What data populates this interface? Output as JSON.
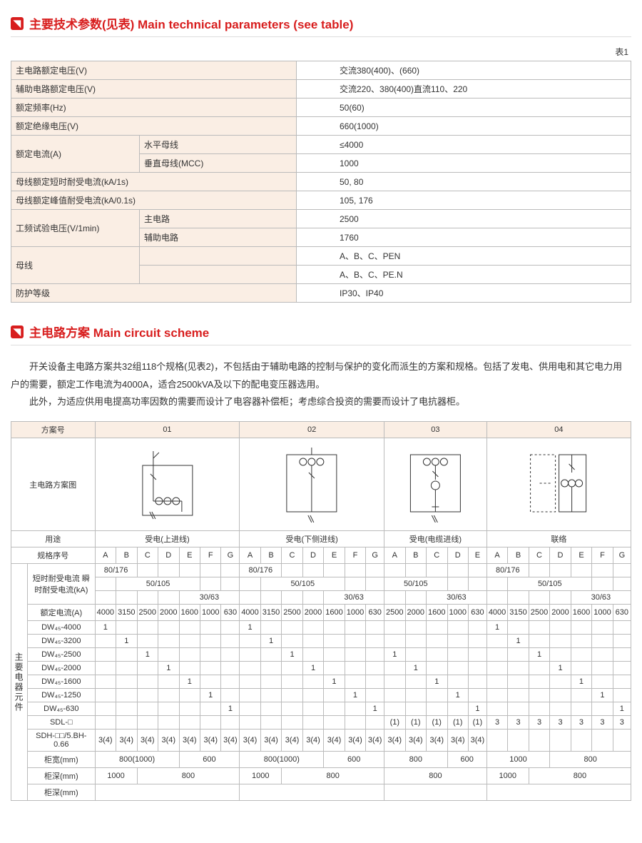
{
  "colors": {
    "accent": "#d81e1e",
    "header_bg": "#faeee4",
    "border": "#bbb",
    "text": "#333"
  },
  "section1": {
    "icon_glyph": "◥",
    "title": "主要技术参数(见表) Main technical parameters (see table)",
    "caption": "表1",
    "rows": [
      {
        "label": "主电路额定电压(V)",
        "sub": null,
        "val": "交流380(400)、(660)"
      },
      {
        "label": "辅助电路额定电压(V)",
        "sub": null,
        "val": "交流220、380(400)直流110、220"
      },
      {
        "label": "额定频率(Hz)",
        "sub": null,
        "val": "50(60)"
      },
      {
        "label": "额定绝缘电压(V)",
        "sub": null,
        "val": "660(1000)"
      },
      {
        "label": "额定电流(A)",
        "sub": "水平母线",
        "val": "≤4000"
      },
      {
        "label": null,
        "sub": "垂直母线(MCC)",
        "val": "1000"
      },
      {
        "label": "母线额定短时耐受电流(kA/1s)",
        "sub": null,
        "val": "50, 80"
      },
      {
        "label": "母线额定峰值耐受电流(kA/0.1s)",
        "sub": null,
        "val": "105, 176"
      },
      {
        "label": "工频试验电压(V/1min)",
        "sub": "主电路",
        "val": "2500"
      },
      {
        "label": null,
        "sub": "辅助电路",
        "val": "1760"
      },
      {
        "label": "母线",
        "sub": "",
        "val": "A、B、C、PEN"
      },
      {
        "label": null,
        "sub": "",
        "val": "A、B、C、PE.N"
      },
      {
        "label": "防护等级",
        "sub": null,
        "val": "IP30、IP40"
      }
    ]
  },
  "section2": {
    "icon_glyph": "◥",
    "title": "主电路方案 Main circuit scheme",
    "paragraphs": [
      "开关设备主电路方案共32组118个规格(见表2)，不包括由于辅助电路的控制与保护的变化而派生的方案和规格。包括了发电、供用电和其它电力用户的需要，额定工作电流为4000A，适合2500kVA及以下的配电变压器选用。",
      "此外，为适应供用电提高功率因数的需要而设计了电容器补偿柜；考虑综合投资的需要而设计了电抗器柜。"
    ],
    "table": {
      "scheme_label": "方案号",
      "scheme_ids": [
        "01",
        "02",
        "03",
        "04"
      ],
      "diagram_label": "主电路方案图",
      "usage_label": "用途",
      "usages": [
        "受电(上进线)",
        "受电(下侧进线)",
        "受电(电缆进线)",
        "联络"
      ],
      "spec_label": "规格序号",
      "col_counts": [
        7,
        7,
        5,
        7
      ],
      "spec_letters": {
        "0": [
          "A",
          "B",
          "C",
          "D",
          "E",
          "F",
          "G"
        ],
        "1": [
          "A",
          "B",
          "C",
          "D",
          "E",
          "F",
          "G"
        ],
        "2": [
          "A",
          "B",
          "C",
          "D",
          "E"
        ],
        "3": [
          "A",
          "B",
          "C",
          "D",
          "E",
          "F",
          "G"
        ]
      },
      "side_label": "主要电器元件",
      "short_label": "短时耐受电流\n瞬时耐受电流(kA)",
      "short_rows": {
        "r1": {
          "g0": "80/176",
          "g1": "80/176",
          "g3": "80/176",
          "span0": 2,
          "span1": 2,
          "span3": 2
        },
        "r2": {
          "g0": "50/105",
          "g1": "50/105",
          "g2": "50/105",
          "g3": "50/105"
        },
        "r3": {
          "g0": "30/63",
          "g1": "30/63",
          "g2": "30/63",
          "g3": "30/63"
        }
      },
      "rated_current_label": "额定电流(A)",
      "rated_current": {
        "g0": [
          "4000",
          "3150",
          "2500",
          "2000",
          "1600",
          "1000",
          "630"
        ],
        "g1": [
          "4000",
          "3150",
          "2500",
          "2000",
          "1600",
          "1000",
          "630"
        ],
        "g2": [
          "2500",
          "2000",
          "1600",
          "1000",
          "630"
        ],
        "g3": [
          "4000",
          "3150",
          "2500",
          "2000",
          "1600",
          "1000",
          "630"
        ]
      },
      "component_rows": [
        {
          "name": "DW₄₅-4000",
          "g0": [
            "1",
            "",
            "",
            "",
            "",
            "",
            ""
          ],
          "g1": [
            "1",
            "",
            "",
            "",
            "",
            "",
            ""
          ],
          "g2": [
            "",
            "",
            "",
            "",
            ""
          ],
          "g3": [
            "1",
            "",
            "",
            "",
            "",
            "",
            ""
          ]
        },
        {
          "name": "DW₄₅-3200",
          "g0": [
            "",
            "1",
            "",
            "",
            "",
            "",
            ""
          ],
          "g1": [
            "",
            "1",
            "",
            "",
            "",
            "",
            ""
          ],
          "g2": [
            "",
            "",
            "",
            "",
            ""
          ],
          "g3": [
            "",
            "1",
            "",
            "",
            "",
            "",
            ""
          ]
        },
        {
          "name": "DW₄₅-2500",
          "g0": [
            "",
            "",
            "1",
            "",
            "",
            "",
            ""
          ],
          "g1": [
            "",
            "",
            "1",
            "",
            "",
            "",
            ""
          ],
          "g2": [
            "1",
            "",
            "",
            "",
            ""
          ],
          "g3": [
            "",
            "",
            "1",
            "",
            "",
            "",
            ""
          ]
        },
        {
          "name": "DW₄₅-2000",
          "g0": [
            "",
            "",
            "",
            "1",
            "",
            "",
            ""
          ],
          "g1": [
            "",
            "",
            "",
            "1",
            "",
            "",
            ""
          ],
          "g2": [
            "",
            "1",
            "",
            "",
            ""
          ],
          "g3": [
            "",
            "",
            "",
            "1",
            "",
            "",
            ""
          ]
        },
        {
          "name": "DW₄₅-1600",
          "g0": [
            "",
            "",
            "",
            "",
            "1",
            "",
            ""
          ],
          "g1": [
            "",
            "",
            "",
            "",
            "1",
            "",
            ""
          ],
          "g2": [
            "",
            "",
            "1",
            "",
            ""
          ],
          "g3": [
            "",
            "",
            "",
            "",
            "1",
            "",
            ""
          ]
        },
        {
          "name": "DW₄₅-1250",
          "g0": [
            "",
            "",
            "",
            "",
            "",
            "1",
            ""
          ],
          "g1": [
            "",
            "",
            "",
            "",
            "",
            "1",
            ""
          ],
          "g2": [
            "",
            "",
            "",
            "1",
            ""
          ],
          "g3": [
            "",
            "",
            "",
            "",
            "",
            "1",
            ""
          ]
        },
        {
          "name": "DW₄₅-630",
          "g0": [
            "",
            "",
            "",
            "",
            "",
            "",
            "1"
          ],
          "g1": [
            "",
            "",
            "",
            "",
            "",
            "",
            "1"
          ],
          "g2": [
            "",
            "",
            "",
            "",
            "1"
          ],
          "g3": [
            "",
            "",
            "",
            "",
            "",
            "",
            "1"
          ]
        },
        {
          "name": "SDL-□",
          "g0": [
            "",
            "",
            "",
            "",
            "",
            "",
            ""
          ],
          "g1": [
            "",
            "",
            "",
            "",
            "",
            "",
            ""
          ],
          "g2": [
            "(1)",
            "(1)",
            "(1)",
            "(1)",
            "(1)"
          ],
          "g3": [
            "3",
            "3",
            "3",
            "3",
            "3",
            "3",
            "3"
          ]
        },
        {
          "name": "SDH-□□/5.BH-0.66",
          "g0": [
            "3(4)",
            "3(4)",
            "3(4)",
            "3(4)",
            "3(4)",
            "3(4)",
            "3(4)"
          ],
          "g1": [
            "3(4)",
            "3(4)",
            "3(4)",
            "3(4)",
            "3(4)",
            "3(4)",
            "3(4)"
          ],
          "g2": [
            "3(4)",
            "3(4)",
            "3(4)",
            "3(4)",
            "3(4)"
          ],
          "g3": [
            "",
            "",
            "",
            "",
            "",
            "",
            ""
          ]
        }
      ],
      "dim_rows": [
        {
          "name": "柜宽(mm)",
          "g0": [
            {
              "v": "800(1000)",
              "s": 4
            },
            {
              "v": "600",
              "s": 3
            }
          ],
          "g1": [
            {
              "v": "800(1000)",
              "s": 4
            },
            {
              "v": "600",
              "s": 3
            }
          ],
          "g2": [
            {
              "v": "800",
              "s": 3
            },
            {
              "v": "600",
              "s": 2
            }
          ],
          "g3": [
            {
              "v": "1000",
              "s": 3
            },
            {
              "v": "800",
              "s": 4
            }
          ]
        },
        {
          "name": "柜深(mm)",
          "g0": [
            {
              "v": "1000",
              "s": 2
            },
            {
              "v": "800",
              "s": 5
            }
          ],
          "g1": [
            {
              "v": "1000",
              "s": 2
            },
            {
              "v": "800",
              "s": 5
            }
          ],
          "g2": [
            {
              "v": "800",
              "s": 5
            }
          ],
          "g3": [
            {
              "v": "1000",
              "s": 2
            },
            {
              "v": "800",
              "s": 5
            }
          ]
        },
        {
          "name": "柜深(mm)",
          "g0": [
            {
              "v": "",
              "s": 7
            }
          ],
          "g1": [
            {
              "v": "",
              "s": 7
            }
          ],
          "g2": [
            {
              "v": "",
              "s": 5
            }
          ],
          "g3": [
            {
              "v": "",
              "s": 7
            }
          ]
        }
      ]
    }
  }
}
